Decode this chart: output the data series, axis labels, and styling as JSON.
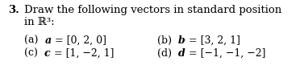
{
  "bg_color": "#ffffff",
  "text_color": "#000000",
  "title_number": "3.",
  "title_body": "Draw the following vectors in standard position",
  "title_line2": "in ℝ³:",
  "items_left": [
    {
      "label": "(a)",
      "var": "a",
      "eq": " = [0, 2, 0]"
    },
    {
      "label": "(c)",
      "var": "c",
      "eq": " = [1, −2, 1]"
    }
  ],
  "items_right": [
    {
      "label": "(b)",
      "var": "b",
      "eq": " = [3, 2, 1]"
    },
    {
      "label": "(d)",
      "var": "d",
      "eq": " = [−1, −1, −2]"
    }
  ],
  "fs_title": 9.5,
  "fs_body": 9.0,
  "fig_w": 3.77,
  "fig_h": 0.97,
  "dpi": 100
}
